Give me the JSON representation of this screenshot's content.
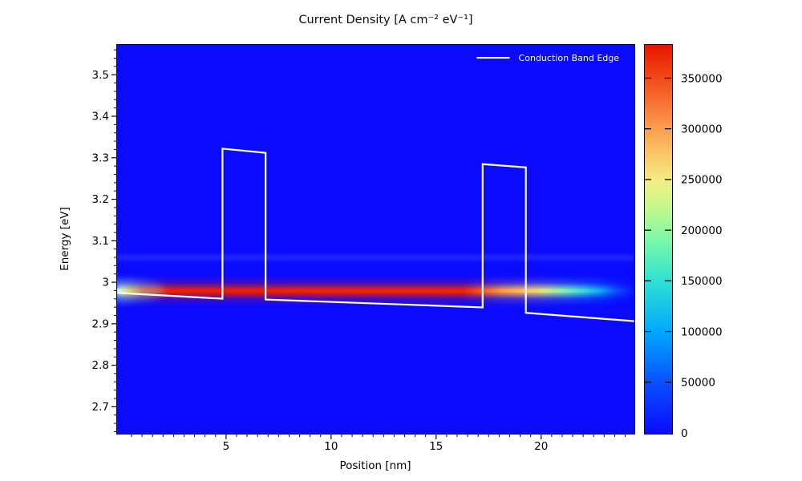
{
  "chart_data": {
    "type": "heatmap",
    "title": "Current Density [A cm⁻² eV⁻¹]",
    "xlabel": "Position [nm]",
    "ylabel": "Energy [eV]",
    "xlim": [
      -0.15,
      24.4
    ],
    "ylim": [
      2.637,
      3.57
    ],
    "x_major_ticks": [
      5,
      10,
      15,
      20
    ],
    "x_minor_step": 0.5,
    "y_major_ticks": [
      2.7,
      2.8,
      2.9,
      3.0,
      3.1,
      3.2,
      3.3,
      3.4,
      3.5
    ],
    "y_minor_step": 0.02,
    "grid": false,
    "plot_background_color": "#0a0aff",
    "background_value": 0,
    "legend": {
      "position": "top-right",
      "entries": [
        {
          "label": "Conduction Band Edge",
          "color": "#ffffff",
          "type": "line"
        }
      ]
    },
    "band_edge": {
      "name": "Conduction Band Edge",
      "comment": "double-barrier potential profile; barriers ~4.85-6.9 nm (top ~3.32 eV) and ~17.2-19.25 nm (top ~3.28 eV)",
      "points_x_nm": [
        -0.15,
        4.85,
        4.85,
        6.9,
        6.9,
        17.2,
        17.2,
        19.25,
        19.25,
        24.4
      ],
      "points_e_ev": [
        2.975,
        2.961,
        3.321,
        3.311,
        2.959,
        2.94,
        3.284,
        3.276,
        2.927,
        2.907
      ]
    },
    "resonance_band": {
      "energy_ev": 2.98,
      "fwhm_ev": 0.02,
      "intensity_vs_x": [
        [
          0,
          200000
        ],
        [
          0.4,
          320000
        ],
        [
          1.2,
          380000
        ],
        [
          16.5,
          380000
        ],
        [
          17.5,
          310000
        ],
        [
          19.0,
          265000
        ],
        [
          20.0,
          230000
        ],
        [
          21.0,
          150000
        ],
        [
          22.0,
          85000
        ],
        [
          23.0,
          35000
        ],
        [
          24.4,
          5000
        ]
      ]
    },
    "faint_band": {
      "energy_ev": 3.06,
      "intensity": 15000
    },
    "colorbar": {
      "vmin": 0,
      "vmax": 382000,
      "ticks": [
        0,
        50000,
        100000,
        150000,
        200000,
        250000,
        300000,
        350000
      ],
      "colormap_stops": [
        [
          0.0,
          "#0a0aff"
        ],
        [
          0.13,
          "#0a50ff"
        ],
        [
          0.26,
          "#00a6ff"
        ],
        [
          0.39,
          "#2ee0d3"
        ],
        [
          0.5,
          "#7bf9a8"
        ],
        [
          0.585,
          "#c6f88b"
        ],
        [
          0.65,
          "#f2ee83"
        ],
        [
          0.73,
          "#fbc163"
        ],
        [
          0.8,
          "#fa9449"
        ],
        [
          0.87,
          "#f6662a"
        ],
        [
          0.94,
          "#ef3a10"
        ],
        [
          1.0,
          "#e81400"
        ]
      ]
    },
    "streak_gradient_stops": [
      [
        0.0,
        "#ffffff"
      ],
      [
        0.018,
        "#ffe14d"
      ],
      [
        0.05,
        "#f5531e"
      ],
      [
        0.09,
        "#ee1e03"
      ],
      [
        0.67,
        "#ee2103"
      ],
      [
        0.705,
        "#f4581c"
      ],
      [
        0.745,
        "#fb9a42"
      ],
      [
        0.79,
        "#fbc35c"
      ],
      [
        0.825,
        "#dde47c"
      ],
      [
        0.86,
        "#8aefab"
      ],
      [
        0.9,
        "#3cd9da"
      ],
      [
        0.935,
        "#12a0f5"
      ],
      [
        0.965,
        "#0a4cff"
      ],
      [
        1.0,
        "#0b12fe"
      ]
    ]
  }
}
